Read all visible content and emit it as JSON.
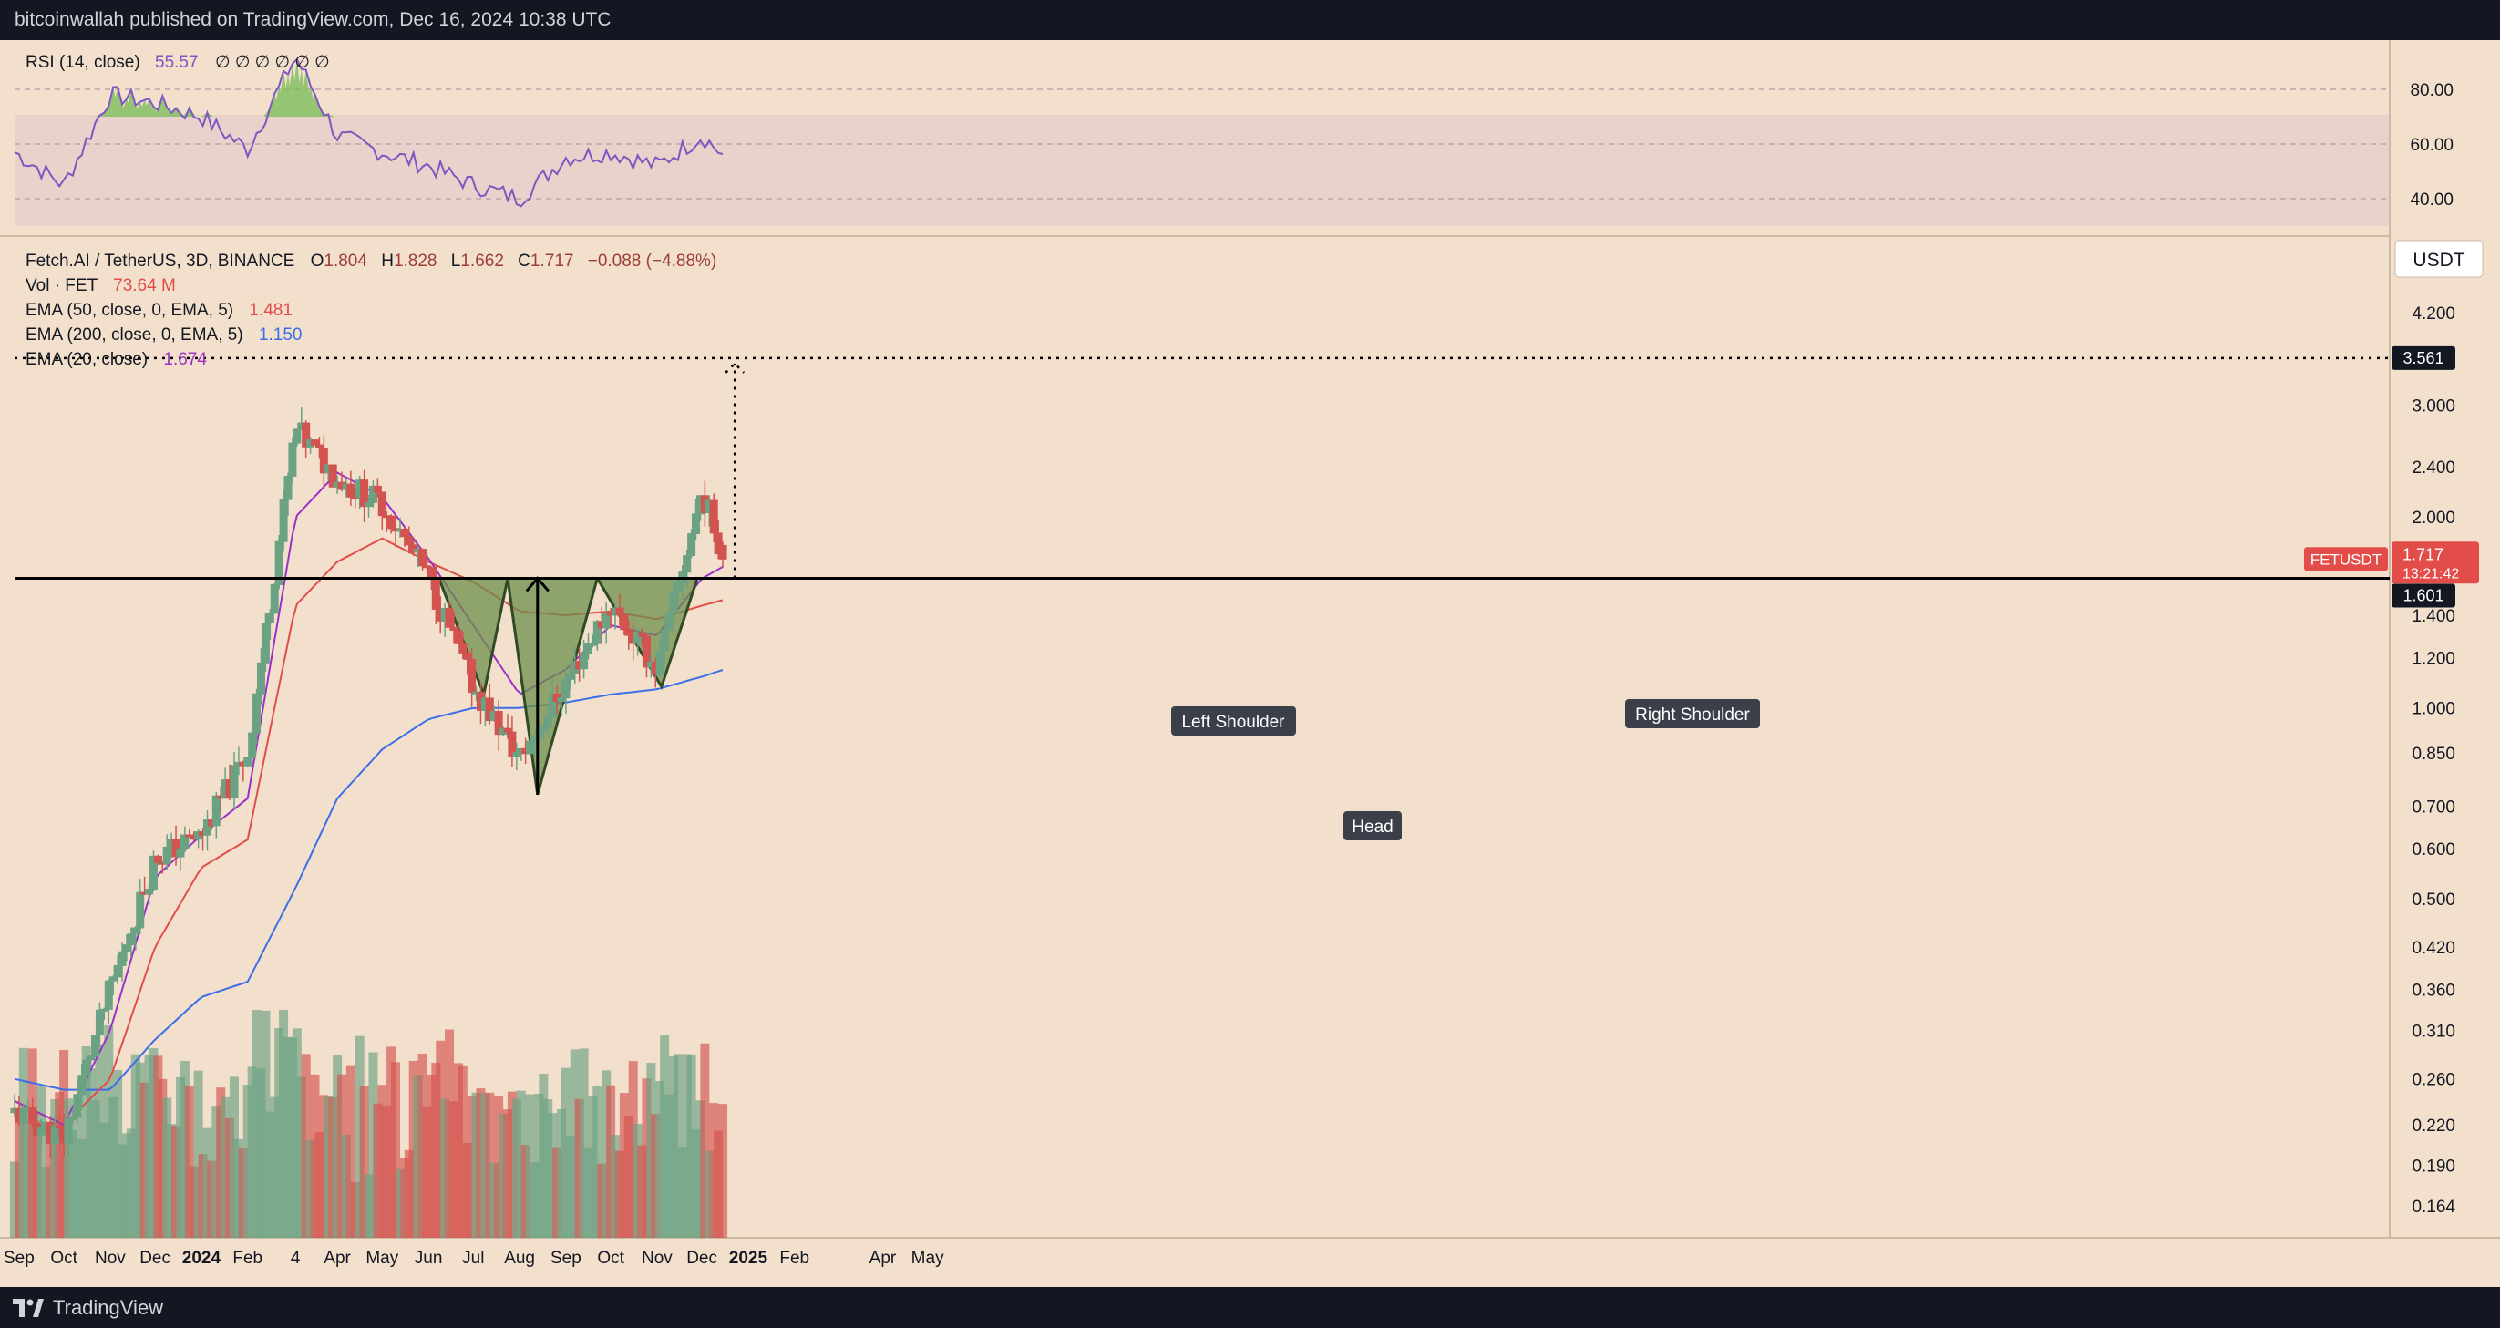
{
  "header": {
    "publisher_text": "bitcoinwallah published on TradingView.com, Dec 16, 2024 10:38 UTC"
  },
  "footer": {
    "brand": "TradingView"
  },
  "colors": {
    "background": "#f2e0cc",
    "up": "#6aa283",
    "down": "#d2534f",
    "ema50": "#e24d4a",
    "ema200": "#3b6ee8",
    "ema20": "#9b30c8",
    "rsi": "#7e57c2",
    "pattern_fill": "#6e8f4c",
    "axis_label_bg": "#131722"
  },
  "rsi_panel": {
    "label": "RSI (14, close)",
    "value": "55.57",
    "extra": "∅ ∅ ∅ ∅ ∅ ∅",
    "levels": [
      80,
      60,
      40
    ],
    "level_labels": [
      "80.00",
      "60.00",
      "40.00"
    ]
  },
  "legend": {
    "symbol_line": "Fetch.AI / TetherUS, 3D, BINANCE",
    "ohlc": [
      {
        "k": "O",
        "v": "1.804"
      },
      {
        "k": "H",
        "v": "1.828"
      },
      {
        "k": "L",
        "v": "1.662"
      },
      {
        "k": "C",
        "v": "1.717"
      }
    ],
    "change": "−0.088 (−4.88%)",
    "vol_label": "Vol · FET",
    "vol_value": "73.64 M",
    "ema50_label": "EMA (50, close, 0, EMA, 5)",
    "ema50_value": "1.481",
    "ema200_label": "EMA (200, close, 0, EMA, 5)",
    "ema200_value": "1.150",
    "ema20_label": "EMA (20, close)",
    "ema20_value": "1.674"
  },
  "price_axis": {
    "currency": "USDT",
    "ticks": [
      4.2,
      3.0,
      2.4,
      2.0,
      1.4,
      1.2,
      1.0,
      0.85,
      0.7,
      0.6,
      0.5,
      0.42,
      0.36,
      0.31,
      0.26,
      0.22,
      0.19,
      0.164
    ],
    "tick_labels": [
      "4.200",
      "3.000",
      "2.400",
      "2.000",
      "1.400",
      "1.200",
      "1.000",
      "0.850",
      "0.700",
      "0.600",
      "0.500",
      "0.420",
      "0.360",
      "0.310",
      "0.260",
      "0.220",
      "0.190",
      "0.164"
    ],
    "target_label": "3.561",
    "current_symbol": "FETUSDT",
    "current_label": "1.717",
    "countdown": "13:21:42",
    "neckline_label": "1.601"
  },
  "time_axis": {
    "labels": [
      "Sep",
      "Oct",
      "Nov",
      "Dec",
      "2024",
      "Feb",
      "4",
      "Apr",
      "May",
      "Jun",
      "Jul",
      "Aug",
      "Sep",
      "Oct",
      "Nov",
      "Dec",
      "2025",
      "Feb",
      "Apr",
      "May"
    ]
  },
  "annotations": {
    "left_shoulder": "Left Shoulder",
    "head": "Head",
    "right_shoulder": "Right Shoulder"
  },
  "chart_data": {
    "type": "candlestick",
    "symbol": "FETUSDT",
    "interval": "3D",
    "exchange": "BINANCE",
    "x": [
      "2023-08-29",
      "2023-10-01",
      "2023-11-01",
      "2023-12-01",
      "2024-01-01",
      "2024-02-01",
      "2024-03-04",
      "2024-04-01",
      "2024-05-01",
      "2024-06-01",
      "2024-07-01",
      "2024-08-01",
      "2024-09-01",
      "2024-10-01",
      "2024-11-01",
      "2024-12-01",
      "2024-12-16"
    ],
    "close": [
      0.23,
      0.21,
      0.36,
      0.58,
      0.63,
      0.85,
      2.75,
      2.3,
      2.1,
      1.6,
      1.08,
      0.83,
      1.1,
      1.45,
      1.15,
      2.2,
      1.717
    ],
    "ema20": [
      0.24,
      0.22,
      0.31,
      0.54,
      0.63,
      0.72,
      2.0,
      2.35,
      2.15,
      1.72,
      1.35,
      1.05,
      1.15,
      1.35,
      1.3,
      1.6,
      1.674
    ],
    "ema50": [
      0.24,
      0.22,
      0.26,
      0.42,
      0.56,
      0.62,
      1.45,
      1.7,
      1.85,
      1.7,
      1.58,
      1.42,
      1.4,
      1.42,
      1.38,
      1.45,
      1.481
    ],
    "ema200": [
      0.26,
      0.25,
      0.25,
      0.3,
      0.35,
      0.37,
      0.52,
      0.72,
      0.86,
      0.96,
      1.0,
      1.0,
      1.02,
      1.05,
      1.07,
      1.12,
      1.15
    ],
    "rsi": [
      57,
      45,
      78,
      75,
      70,
      58,
      92,
      63,
      57,
      52,
      45,
      40,
      55,
      57,
      52,
      63,
      55.57
    ],
    "pattern": "inverse head and shoulders",
    "neckline": 1.601,
    "target": 3.561,
    "left_shoulder_low": 1.05,
    "head_low": 0.73,
    "right_shoulder_low": 1.08,
    "last": {
      "open": 1.804,
      "high": 1.828,
      "low": 1.662,
      "close": 1.717,
      "change": -0.088,
      "change_pct": -4.88
    },
    "last_volume": "73.64 M",
    "y_scale": "log",
    "ylim": [
      0.155,
      4.5
    ]
  }
}
